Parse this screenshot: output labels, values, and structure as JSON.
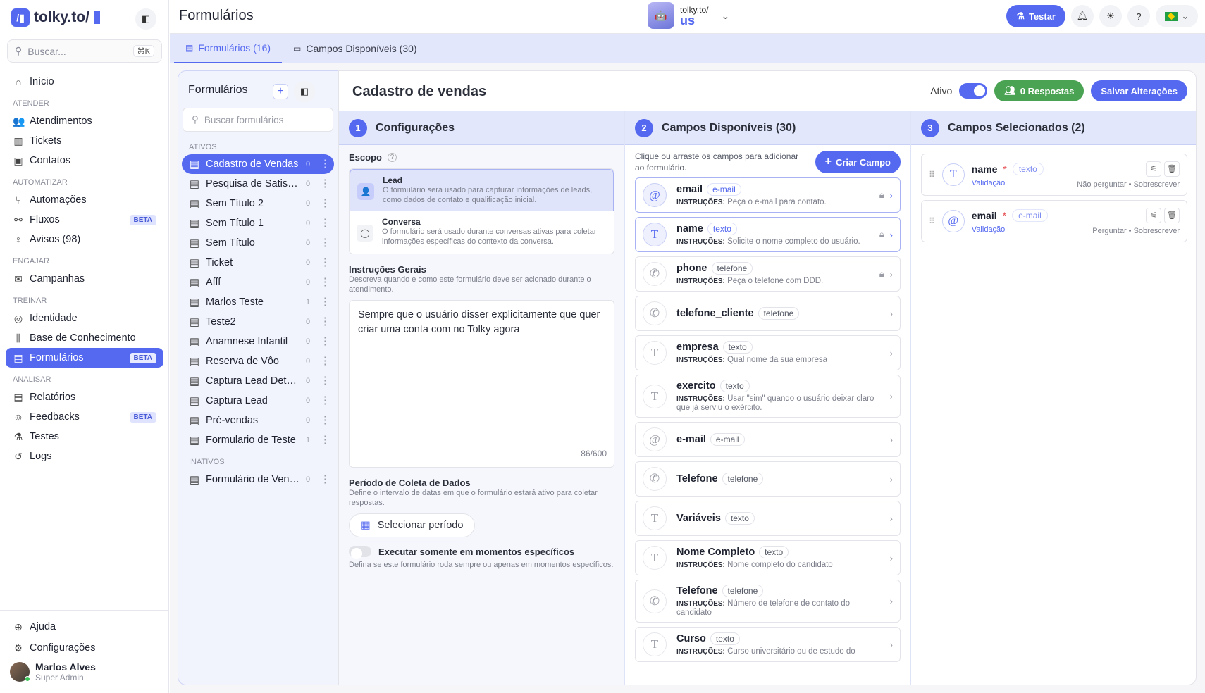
{
  "sidebar": {
    "logo": "tolky.to/",
    "search_placeholder": "Buscar...",
    "search_shortcut": "⌘K",
    "nav": [
      {
        "type": "item",
        "label": "Início",
        "icon": "home-icon",
        "glyph": "⌂"
      },
      {
        "type": "section",
        "label": "ATENDER"
      },
      {
        "type": "item",
        "label": "Atendimentos",
        "icon": "users-icon",
        "glyph": "👥"
      },
      {
        "type": "item",
        "label": "Tickets",
        "icon": "ticket-icon",
        "glyph": "▥"
      },
      {
        "type": "item",
        "label": "Contatos",
        "icon": "contacts-icon",
        "glyph": "▣"
      },
      {
        "type": "section",
        "label": "AUTOMATIZAR"
      },
      {
        "type": "item",
        "label": "Automações",
        "icon": "branch-icon",
        "glyph": "⑂"
      },
      {
        "type": "item",
        "label": "Fluxos",
        "icon": "flow-icon",
        "glyph": "⚯",
        "badge": "BETA"
      },
      {
        "type": "item",
        "label": "Avisos (98)",
        "icon": "lightbulb-icon",
        "glyph": "♀",
        "dot": true
      },
      {
        "type": "section",
        "label": "ENGAJAR"
      },
      {
        "type": "item",
        "label": "Campanhas",
        "icon": "mail-icon",
        "glyph": "✉"
      },
      {
        "type": "section",
        "label": "TREINAR"
      },
      {
        "type": "item",
        "label": "Identidade",
        "icon": "fingerprint-icon",
        "glyph": "◎"
      },
      {
        "type": "item",
        "label": "Base de Conhecimento",
        "icon": "library-icon",
        "glyph": "⫼"
      },
      {
        "type": "item",
        "label": "Formulários",
        "icon": "form-icon",
        "glyph": "▤",
        "badge": "BETA",
        "active": true
      },
      {
        "type": "section",
        "label": "ANALISAR"
      },
      {
        "type": "item",
        "label": "Relatórios",
        "icon": "report-icon",
        "glyph": "▤"
      },
      {
        "type": "item",
        "label": "Feedbacks",
        "icon": "feedback-icon",
        "glyph": "☺",
        "badge": "BETA"
      },
      {
        "type": "item",
        "label": "Testes",
        "icon": "flask-icon",
        "glyph": "⚗"
      },
      {
        "type": "item",
        "label": "Logs",
        "icon": "history-icon",
        "glyph": "↺"
      }
    ],
    "bottom": [
      {
        "label": "Ajuda",
        "icon": "lifebuoy-icon",
        "glyph": "⊕"
      },
      {
        "label": "Configurações",
        "icon": "gear-icon",
        "glyph": "⚙"
      }
    ],
    "user": {
      "name": "Marlos Alves",
      "role": "Super Admin"
    }
  },
  "header": {
    "title": "Formulários",
    "workspace_line1": "tolky.to/",
    "workspace_line2": "us",
    "test_button": "Testar",
    "language": "BR"
  },
  "tabs": [
    {
      "label": "Formulários (16)",
      "active": true,
      "icon": "document-icon",
      "glyph": "▤"
    },
    {
      "label": "Campos Disponíveis (30)",
      "icon": "input-icon",
      "glyph": "▭"
    }
  ],
  "forms_panel": {
    "title": "Formulários",
    "search_placeholder": "Buscar formulários",
    "active_label": "ATIVOS",
    "inactive_label": "INATIVOS",
    "active": [
      {
        "name": "Cadastro de Vendas",
        "count": "0",
        "selected": true
      },
      {
        "name": "Pesquisa de Satisfação",
        "count": "0"
      },
      {
        "name": "Sem Título 2",
        "count": "0"
      },
      {
        "name": "Sem Título 1",
        "count": "0"
      },
      {
        "name": "Sem Título",
        "count": "0"
      },
      {
        "name": "Ticket",
        "count": "0"
      },
      {
        "name": "Afff",
        "count": "0"
      },
      {
        "name": "Marlos Teste",
        "count": "1"
      },
      {
        "name": "Teste2",
        "count": "0"
      },
      {
        "name": "Anamnese Infantil",
        "count": "0"
      },
      {
        "name": "Reserva de Vôo",
        "count": "0"
      },
      {
        "name": "Captura Lead Detalhada",
        "count": "0"
      },
      {
        "name": "Captura Lead",
        "count": "0"
      },
      {
        "name": "Pré-vendas",
        "count": "0"
      },
      {
        "name": "Formulario de Teste",
        "count": "1"
      }
    ],
    "inactive": [
      {
        "name": "Formulário de Vendas",
        "count": "0"
      }
    ]
  },
  "editor": {
    "title": "Cadastro de vendas",
    "active_label": "Ativo",
    "active": true,
    "responses_button": "0 Respostas",
    "save_button": "Salvar Alterações",
    "config": {
      "step": "1",
      "title": "Configurações",
      "scope_label": "Escopo",
      "scope_options": [
        {
          "title": "Lead",
          "desc": "O formulário será usado para capturar informações de leads, como dados de contato e qualificação inicial.",
          "selected": true,
          "icon": "user-plus-icon",
          "glyph": "👤"
        },
        {
          "title": "Conversa",
          "desc": "O formulário será usado durante conversas ativas para coletar informações específicas do contexto da conversa.",
          "icon": "chat-icon",
          "glyph": "◯"
        }
      ],
      "instructions_label": "Instruções Gerais",
      "instructions_desc": "Descreva quando e como este formulário deve ser acionado durante o atendimento.",
      "instructions_value": "Sempre que o usuário disser explicitamente que quer criar uma conta com no Tolky agora",
      "instructions_count": "86/600",
      "period_label": "Período de Coleta de Dados",
      "period_desc": "Define o intervalo de datas em que o formulário estará ativo para coletar respostas.",
      "period_button": "Selecionar período",
      "specific_label": "Executar somente em momentos específicos",
      "specific_desc": "Defina se este formulário roda sempre ou apenas em momentos específicos.",
      "specific_enabled": false
    },
    "available": {
      "step": "2",
      "title": "Campos Disponíveis (30)",
      "hint": "Clique ou arraste os campos para adicionar ao formulário.",
      "create_button": "Criar Campo",
      "instr_prefix": "INSTRUÇÕES:",
      "fields": [
        {
          "name": "email",
          "type": "e-mail",
          "instr": "Peça o e-mail para contato.",
          "kind": "email",
          "locked": true,
          "highlight": true
        },
        {
          "name": "name",
          "type": "texto",
          "instr": "Solicite o nome completo do usuário.",
          "kind": "text",
          "locked": true,
          "highlight": true
        },
        {
          "name": "phone",
          "type": "telefone",
          "instr": "Peça o telefone com DDD.",
          "kind": "phone",
          "locked": true
        },
        {
          "name": "telefone_cliente",
          "type": "telefone",
          "kind": "phone"
        },
        {
          "name": "empresa",
          "type": "texto",
          "instr": "Qual nome da sua empresa",
          "kind": "text"
        },
        {
          "name": "exercito",
          "type": "texto",
          "instr": "Usar \"sim\" quando o usuário deixar claro que já serviu o exército.",
          "kind": "text"
        },
        {
          "name": "e-mail",
          "type": "e-mail",
          "kind": "email"
        },
        {
          "name": "Telefone",
          "type": "telefone",
          "kind": "phone"
        },
        {
          "name": "Variáveis",
          "type": "texto",
          "kind": "text"
        },
        {
          "name": "Nome Completo",
          "type": "texto",
          "instr": "Nome completo do candidato",
          "kind": "text"
        },
        {
          "name": "Telefone",
          "type": "telefone",
          "instr": "Número de telefone de contato do candidato",
          "kind": "phone"
        },
        {
          "name": "Curso",
          "type": "texto",
          "instr": "Curso universitário ou de estudo do",
          "kind": "text"
        }
      ]
    },
    "selected": {
      "step": "3",
      "title": "Campos Selecionados (2)",
      "fields": [
        {
          "name": "name",
          "type": "texto",
          "kind": "text",
          "validation": "Validação",
          "ask": "Não perguntar",
          "mode": "Sobrescrever"
        },
        {
          "name": "email",
          "type": "e-mail",
          "kind": "email",
          "validation": "Validação",
          "ask": "Perguntar",
          "mode": "Sobrescrever"
        }
      ]
    }
  },
  "colors": {
    "accent": "#5468f0",
    "success": "#4aa352",
    "tab_bg": "#e3e7fb"
  }
}
